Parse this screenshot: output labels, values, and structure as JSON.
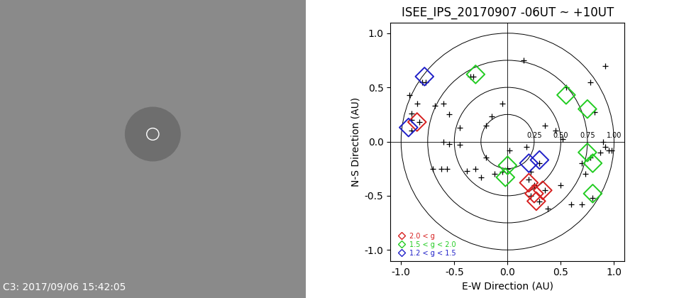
{
  "image_panel": {
    "caption": "C3: 2017/09/06 15:42:05"
  },
  "chart_data": {
    "type": "scatter",
    "title": "ISEE_IPS_20170907 -06UT ~ +10UT",
    "x_label": "E-W Direction (AU)",
    "y_label": "N-S Direction (AU)",
    "xlim": [
      -1.1,
      1.1
    ],
    "ylim": [
      -1.1,
      1.1
    ],
    "xticks": [
      -1.0,
      -0.5,
      0.0,
      0.5,
      1.0
    ],
    "yticks": [
      -1.0,
      -0.5,
      0.0,
      0.5,
      1.0
    ],
    "rings": [
      {
        "value": 0.25,
        "label": "0.25"
      },
      {
        "value": 0.5,
        "label": "0.50"
      },
      {
        "value": 0.75,
        "label": "0.75"
      },
      {
        "value": 1.0,
        "label": "1.00"
      }
    ],
    "legend": "lower left",
    "series": [
      {
        "color": "#000000",
        "marker": "plus",
        "x": [
          0.15,
          -0.92,
          -0.85,
          -0.9,
          -0.68,
          -0.6,
          -0.35,
          -0.32,
          -0.8,
          -0.77,
          -0.9,
          -0.9,
          -0.83,
          -0.55,
          -0.45,
          -0.6,
          -0.55,
          -0.45,
          -0.2,
          -0.15,
          -0.05,
          -0.2,
          -0.7,
          -0.62,
          -0.57,
          -0.38,
          -0.25,
          -0.05,
          0.0,
          0.3,
          0.22,
          0.2,
          0.25,
          0.35,
          0.22,
          0.3,
          0.38,
          0.5,
          0.6,
          0.7,
          0.8,
          0.73,
          0.7,
          0.78,
          0.87,
          0.92,
          0.95,
          0.98,
          0.9,
          0.55,
          0.82,
          0.78,
          0.92,
          0.45,
          0.35,
          0.18,
          0.02,
          0.52,
          -0.3,
          -0.12
        ],
        "y": [
          0.75,
          0.43,
          0.35,
          0.26,
          0.33,
          0.35,
          0.6,
          0.6,
          0.55,
          0.55,
          0.1,
          0.2,
          0.18,
          0.25,
          0.13,
          0.0,
          -0.02,
          -0.03,
          0.15,
          0.23,
          0.35,
          -0.15,
          -0.25,
          -0.25,
          -0.25,
          -0.27,
          -0.33,
          -0.28,
          -0.25,
          -0.2,
          -0.28,
          -0.35,
          -0.4,
          -0.45,
          -0.5,
          -0.55,
          -0.62,
          -0.4,
          -0.58,
          -0.58,
          -0.52,
          -0.3,
          -0.2,
          -0.15,
          -0.1,
          -0.05,
          -0.08,
          -0.08,
          0.0,
          0.5,
          0.27,
          0.55,
          0.7,
          0.1,
          0.15,
          -0.05,
          -0.08,
          0.02,
          -0.25,
          -0.3
        ]
      },
      {
        "name": "2.0 < g",
        "color": "#d62020",
        "marker": "diamond",
        "x": [
          -0.85,
          0.2,
          0.25,
          0.33,
          0.27
        ],
        "y": [
          0.18,
          -0.38,
          -0.48,
          -0.45,
          -0.55
        ]
      },
      {
        "name": "1.5 < g < 2.0",
        "color": "#22cc22",
        "marker": "diamond",
        "x": [
          -0.3,
          0.55,
          0.75,
          0.0,
          -0.02,
          0.75,
          0.8,
          0.8
        ],
        "y": [
          0.62,
          0.43,
          0.3,
          -0.22,
          -0.33,
          -0.1,
          -0.2,
          -0.48
        ]
      },
      {
        "name": "1.2 < g < 1.5",
        "color": "#2020c8",
        "marker": "diamond",
        "x": [
          -0.78,
          -0.93,
          0.2,
          0.3
        ],
        "y": [
          0.6,
          0.13,
          -0.2,
          -0.17
        ]
      }
    ]
  }
}
